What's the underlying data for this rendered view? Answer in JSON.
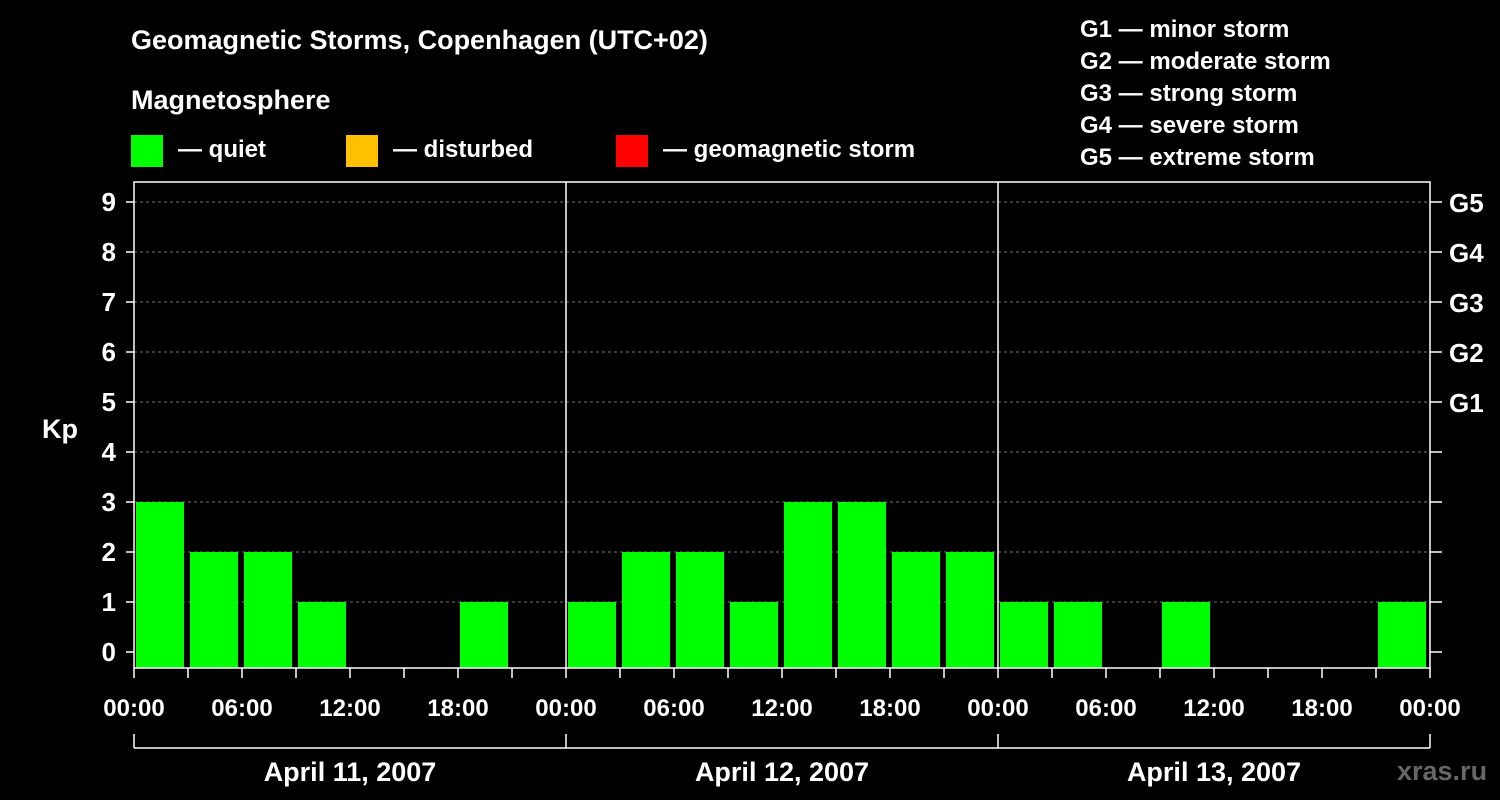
{
  "chart_data": {
    "type": "bar",
    "title": "Geomagnetic Storms, Copenhagen (UTC+02)",
    "legend_title": "Magnetosphere",
    "legend": [
      {
        "label": "— quiet",
        "color": "#00ff00"
      },
      {
        "label": "— disturbed",
        "color": "#ffc000"
      },
      {
        "label": "— geomagnetic storm",
        "color": "#ff0000"
      }
    ],
    "storm_scale": [
      "G1 — minor storm",
      "G2 — moderate storm",
      "G3 — strong storm",
      "G4 — severe storm",
      "G5 — extreme storm"
    ],
    "ylabel": "Kp",
    "ylim": [
      0,
      9
    ],
    "y_ticks": [
      "0",
      "1",
      "2",
      "3",
      "4",
      "5",
      "6",
      "7",
      "8",
      "9"
    ],
    "right_ticks": [
      {
        "kp": 5,
        "label": "G1"
      },
      {
        "kp": 6,
        "label": "G2"
      },
      {
        "kp": 7,
        "label": "G3"
      },
      {
        "kp": 8,
        "label": "G4"
      },
      {
        "kp": 9,
        "label": "G5"
      }
    ],
    "x_ticks": [
      "00:00",
      "06:00",
      "12:00",
      "18:00",
      "00:00",
      "06:00",
      "12:00",
      "18:00",
      "00:00",
      "06:00",
      "12:00",
      "18:00",
      "00:00"
    ],
    "dates": [
      "April 11, 2007",
      "April 12, 2007",
      "April 13, 2007"
    ],
    "grid": true,
    "bar_color": "#00ff00",
    "bars": [
      {
        "x": "April 11, 2007 00:00–03:00",
        "kp": 3
      },
      {
        "x": "April 11, 2007 03:00–06:00",
        "kp": 2
      },
      {
        "x": "April 11, 2007 06:00–09:00",
        "kp": 2
      },
      {
        "x": "April 11, 2007 09:00–12:00",
        "kp": 1
      },
      {
        "x": "April 11, 2007 12:00–15:00",
        "kp": 0
      },
      {
        "x": "April 11, 2007 15:00–18:00",
        "kp": 0
      },
      {
        "x": "April 11, 2007 18:00–21:00",
        "kp": 1
      },
      {
        "x": "April 11, 2007 21:00–24:00",
        "kp": 0
      },
      {
        "x": "April 12, 2007 00:00–03:00",
        "kp": 1
      },
      {
        "x": "April 12, 2007 03:00–06:00",
        "kp": 2
      },
      {
        "x": "April 12, 2007 06:00–09:00",
        "kp": 2
      },
      {
        "x": "April 12, 2007 09:00–12:00",
        "kp": 1
      },
      {
        "x": "April 12, 2007 12:00–15:00",
        "kp": 3
      },
      {
        "x": "April 12, 2007 15:00–18:00",
        "kp": 3
      },
      {
        "x": "April 12, 2007 18:00–21:00",
        "kp": 2
      },
      {
        "x": "April 12, 2007 21:00–24:00",
        "kp": 2
      },
      {
        "x": "April 13, 2007 00:00–03:00",
        "kp": 1
      },
      {
        "x": "April 13, 2007 03:00–06:00",
        "kp": 1
      },
      {
        "x": "April 13, 2007 06:00–09:00",
        "kp": 0
      },
      {
        "x": "April 13, 2007 09:00–12:00",
        "kp": 1
      },
      {
        "x": "April 13, 2007 12:00–15:00",
        "kp": 0
      },
      {
        "x": "April 13, 2007 15:00–18:00",
        "kp": 0
      },
      {
        "x": "April 13, 2007 18:00–21:00",
        "kp": 0
      },
      {
        "x": "April 13, 2007 21:00–24:00",
        "kp": 1
      }
    ]
  },
  "watermark": "xras.ru"
}
